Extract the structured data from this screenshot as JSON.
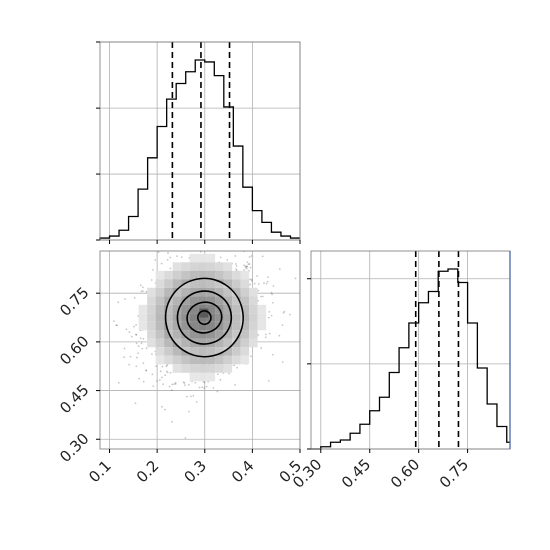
{
  "chart_data": [
    {
      "type": "histogram",
      "panel": "top-left",
      "variable": "param1",
      "xlim": [
        0.08,
        0.5
      ],
      "bin_edges": [
        0.08,
        0.1,
        0.12,
        0.14,
        0.16,
        0.18,
        0.2,
        0.22,
        0.24,
        0.26,
        0.28,
        0.3,
        0.32,
        0.34,
        0.36,
        0.38,
        0.4,
        0.42,
        0.44,
        0.46,
        0.48,
        0.5
      ],
      "counts": [
        1,
        2,
        5,
        12,
        26,
        42,
        58,
        72,
        80,
        86,
        92,
        91,
        84,
        68,
        48,
        27,
        15,
        9,
        4,
        2,
        1
      ],
      "quantiles": [
        0.232,
        0.292,
        0.352
      ],
      "yticks": 4,
      "grid": true
    },
    {
      "type": "heatmap",
      "panel": "bottom-left",
      "xlabel": "",
      "ylabel": "",
      "xlim": [
        0.08,
        0.5
      ],
      "ylim": [
        0.27,
        0.88
      ],
      "xticks": [
        "0.1",
        "0.2",
        "0.3",
        "0.4",
        "0.5"
      ],
      "yticks": [
        "0.30",
        "0.45",
        "0.60",
        "0.75"
      ],
      "ytick_values": [
        0.3,
        0.45,
        0.6,
        0.75
      ],
      "xtick_values": [
        0.1,
        0.2,
        0.3,
        0.4,
        0.5
      ],
      "grid": true,
      "center": [
        0.295,
        0.675
      ],
      "contours": [
        {
          "level": "outer",
          "rx": 0.118,
          "ry": 0.175
        },
        {
          "level": "mid",
          "rx": 0.082,
          "ry": 0.118
        },
        {
          "level": "inner",
          "rx": 0.053,
          "ry": 0.068
        },
        {
          "level": "core",
          "rx": 0.02,
          "ry": 0.03
        }
      ]
    },
    {
      "type": "histogram",
      "panel": "bottom-right",
      "variable": "param2",
      "xlim": [
        0.27,
        0.88
      ],
      "xticks": [
        "0.30",
        "0.45",
        "0.60",
        "0.75"
      ],
      "xtick_values": [
        0.3,
        0.45,
        0.6,
        0.75
      ],
      "bin_edges": [
        0.27,
        0.3,
        0.33,
        0.36,
        0.39,
        0.42,
        0.45,
        0.48,
        0.51,
        0.54,
        0.57,
        0.6,
        0.63,
        0.66,
        0.69,
        0.72,
        0.75,
        0.78,
        0.81,
        0.84,
        0.87,
        0.88
      ],
      "counts": [
        0,
        1,
        3,
        4,
        7,
        11,
        17,
        23,
        34,
        45,
        56,
        65,
        70,
        79,
        80,
        74,
        56,
        36,
        20,
        10,
        3
      ],
      "quantiles": [
        0.591,
        0.662,
        0.722
      ],
      "yticks": 3,
      "grid": true
    }
  ]
}
